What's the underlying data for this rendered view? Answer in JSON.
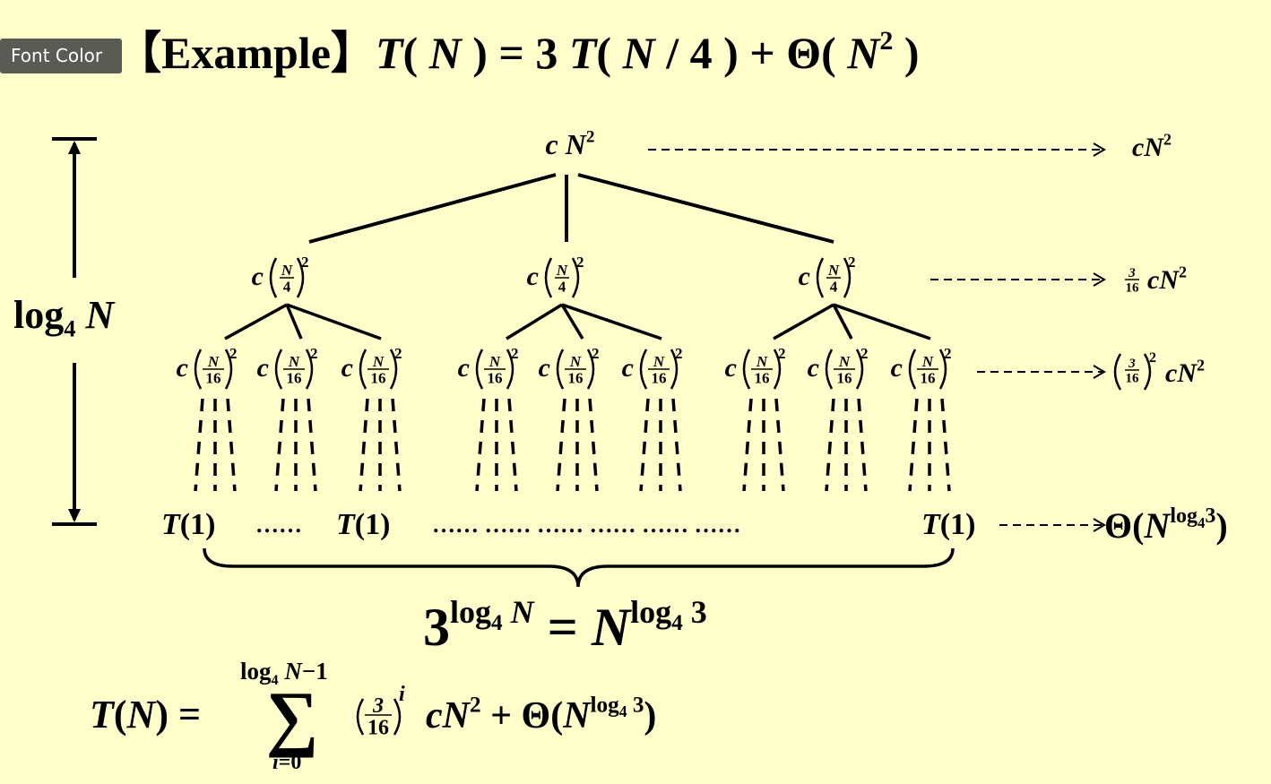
{
  "tooltip": "Font Color",
  "title": [
    "【Example】",
    "T",
    "( ",
    "N",
    " ) = 3 ",
    "T",
    "( ",
    "N",
    " / 4 ) + Θ( ",
    "N",
    "2",
    " )"
  ],
  "height_label": [
    "log",
    "4",
    " N"
  ],
  "tree": {
    "root": [
      "c ",
      "N",
      "2"
    ],
    "level1": [
      {
        "coef": "c",
        "num": "N",
        "den": "4",
        "exp": "2"
      },
      {
        "coef": "c",
        "num": "N",
        "den": "4",
        "exp": "2"
      },
      {
        "coef": "c",
        "num": "N",
        "den": "4",
        "exp": "2"
      }
    ],
    "level2": [
      {
        "coef": "c",
        "num": "N",
        "den": "16",
        "exp": "2"
      },
      {
        "coef": "c",
        "num": "N",
        "den": "16",
        "exp": "2"
      },
      {
        "coef": "c",
        "num": "N",
        "den": "16",
        "exp": "2"
      },
      {
        "coef": "c",
        "num": "N",
        "den": "16",
        "exp": "2"
      },
      {
        "coef": "c",
        "num": "N",
        "den": "16",
        "exp": "2"
      },
      {
        "coef": "c",
        "num": "N",
        "den": "16",
        "exp": "2"
      },
      {
        "coef": "c",
        "num": "N",
        "den": "16",
        "exp": "2"
      },
      {
        "coef": "c",
        "num": "N",
        "den": "16",
        "exp": "2"
      },
      {
        "coef": "c",
        "num": "N",
        "den": "16",
        "exp": "2"
      }
    ],
    "leaves": [
      [
        "T",
        "(1)"
      ],
      "……",
      [
        "T",
        "(1)"
      ],
      "…… …… …… …… …… ……",
      [
        "T",
        "(1)"
      ]
    ]
  },
  "level_costs": [
    {
      "rest": [
        "c",
        "N",
        "2"
      ]
    },
    {
      "num": "3",
      "den": "16",
      "rest": [
        "c",
        "N",
        "2"
      ]
    },
    {
      "num": "3",
      "den": "16",
      "exp": "2",
      "rest": [
        "c",
        "N",
        "2"
      ]
    },
    {
      "rest": [
        "Θ(",
        "N",
        "log",
        "4",
        "3",
        ")"
      ]
    }
  ],
  "leaf_count": [
    "3",
    "log",
    "4",
    " N",
    " = ",
    "N",
    "log",
    "4",
    " 3"
  ],
  "total": {
    "lhs": [
      "T",
      "(",
      "N",
      ") ="
    ],
    "sum_symbol": "∑",
    "sum_upper": [
      "log",
      "4",
      " N",
      "−1"
    ],
    "sum_lower": [
      "i",
      "=0"
    ],
    "num": "3",
    "den": "16",
    "exp": "i",
    "rest": [
      "c",
      "N",
      "2",
      " + Θ(",
      "N",
      "log",
      "4",
      " 3",
      ")"
    ]
  }
}
